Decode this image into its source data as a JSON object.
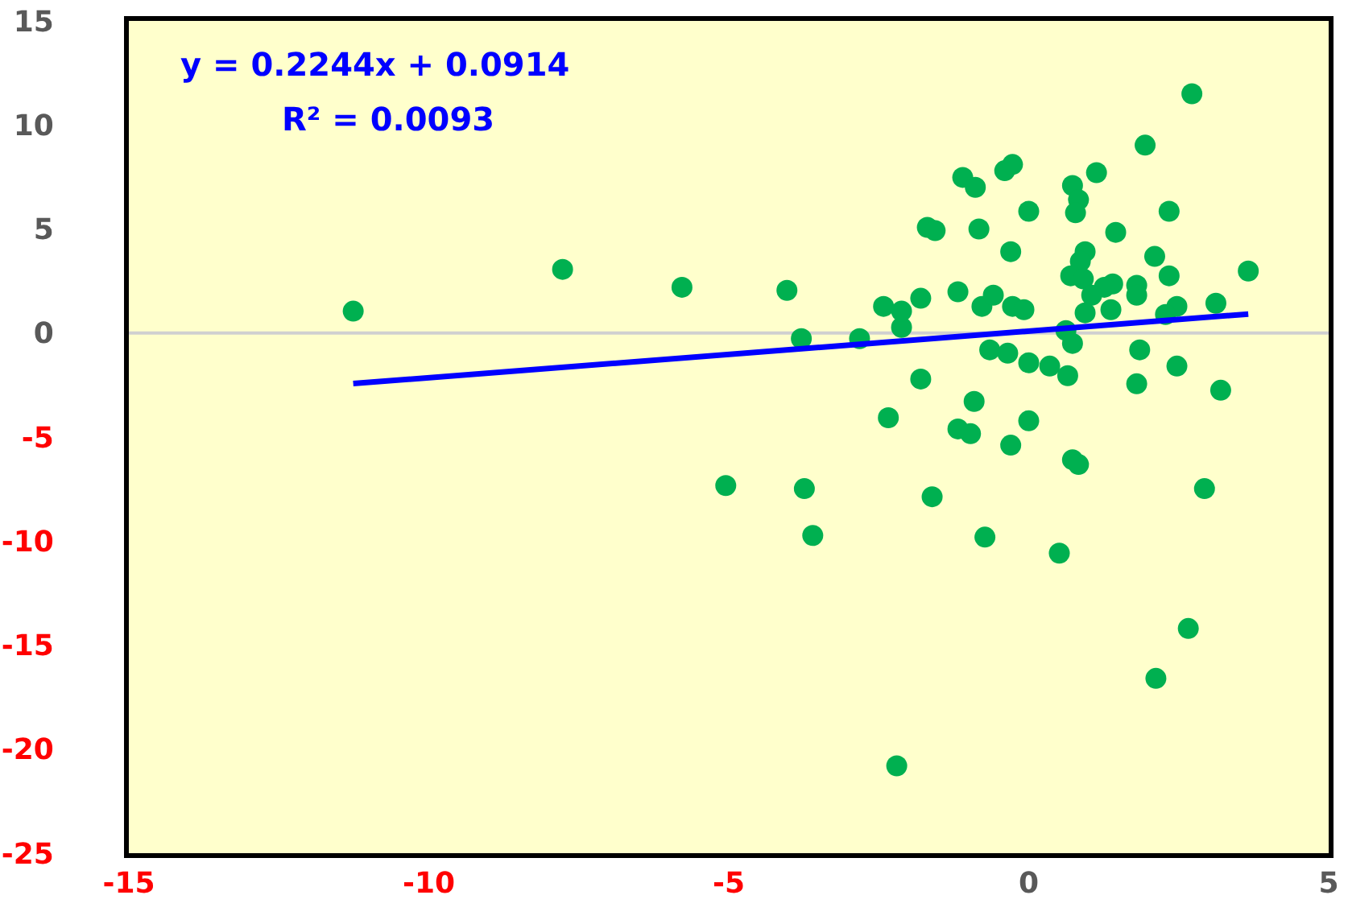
{
  "chart_data": {
    "type": "scatter",
    "marker": "circle",
    "grid": false,
    "annotations": [
      "y = 0.2244x + 0.0914",
      "R² = 0.0093"
    ],
    "ref_lines": [
      {
        "axis": "y",
        "value": 0,
        "color": "#d0d0d0"
      }
    ],
    "xlim": [
      -15,
      5
    ],
    "xticks": [
      -15,
      -10,
      -5,
      0,
      5
    ],
    "ylim": [
      -25,
      15
    ],
    "yticks": [
      -25,
      -20,
      -15,
      -10,
      -5,
      0,
      5,
      10,
      15
    ],
    "series": [
      {
        "color": "#00b050",
        "x": [
          -11.26,
          -7.77,
          -5.78,
          -4.03,
          -3.79,
          -2.82,
          -2.12,
          -2.42,
          -2.12,
          -1.8,
          -1.18,
          -0.78,
          -0.59,
          -0.27,
          -0.08,
          -0.3,
          -1.69,
          -1.56,
          -0.83,
          0.0,
          -1.1,
          -0.89,
          -0.4,
          -0.27,
          0.73,
          0.83,
          0.78,
          1.13,
          1.94,
          2.72,
          2.34,
          1.45,
          0.94,
          0.86,
          0.7,
          0.91,
          2.1,
          3.66,
          2.34,
          1.4,
          1.26,
          1.8,
          1.8,
          1.05,
          1.37,
          0.94,
          2.47,
          2.28,
          3.12,
          0.62,
          0.73,
          -0.65,
          -0.35,
          0.0,
          0.35,
          0.65,
          1.85,
          2.47,
          1.8,
          3.2,
          -1.8,
          -0.91,
          -2.34,
          -1.18,
          -0.97,
          0.0,
          -0.3,
          0.73,
          0.83,
          -3.74,
          -1.61,
          2.93,
          -3.6,
          -0.73,
          0.51,
          -5.05,
          2.66,
          2.12,
          -2.2
        ],
        "values": [
          1.05,
          3.06,
          2.2,
          2.05,
          -0.27,
          -0.27,
          0.27,
          1.28,
          1.05,
          1.67,
          1.98,
          1.28,
          1.82,
          1.28,
          1.12,
          3.91,
          5.08,
          4.92,
          5.0,
          5.85,
          7.48,
          7.0,
          7.8,
          8.1,
          7.09,
          6.4,
          5.78,
          7.71,
          9.03,
          11.5,
          5.85,
          4.84,
          3.91,
          3.44,
          2.75,
          2.6,
          3.68,
          2.98,
          2.75,
          2.36,
          2.2,
          2.29,
          1.82,
          1.82,
          1.12,
          0.97,
          1.28,
          0.89,
          1.43,
          0.12,
          -0.5,
          -0.81,
          -0.97,
          -1.43,
          -1.59,
          -2.05,
          -0.81,
          -1.59,
          -2.44,
          -2.75,
          -2.21,
          -3.29,
          -4.07,
          -4.61,
          -4.84,
          -4.22,
          -5.39,
          -6.09,
          -6.32,
          -7.48,
          -7.87,
          -7.48,
          -9.73,
          -9.81,
          -10.58,
          -7.33,
          -14.2,
          -16.6,
          -20.8
        ]
      },
      {
        "type": "line",
        "color": "#0000ff",
        "marker": "none",
        "x": [
          -11.26,
          3.66
        ],
        "values": [
          -2.43,
          0.91
        ]
      }
    ]
  }
}
